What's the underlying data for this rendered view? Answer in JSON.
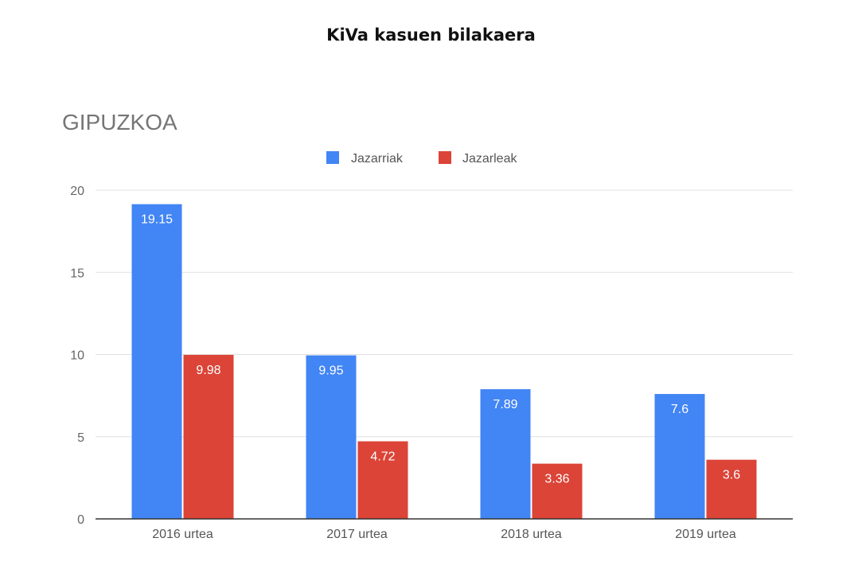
{
  "page": {
    "title": "KiVa kasuen bilakaera"
  },
  "chart_data": {
    "type": "bar",
    "title": "GIPUZKOA",
    "categories": [
      "2016 urtea",
      "2017 urtea",
      "2018 urtea",
      "2019 urtea"
    ],
    "series": [
      {
        "name": "Jazarriak",
        "color": "#4285F4",
        "values": [
          19.15,
          9.95,
          7.89,
          7.6
        ]
      },
      {
        "name": "Jazarleak",
        "color": "#DB4437",
        "values": [
          9.98,
          4.72,
          3.36,
          3.6
        ]
      }
    ],
    "data_labels": [
      [
        "19.15",
        "9.95",
        "7.89",
        "7.6"
      ],
      [
        "9.98",
        "4.72",
        "3.36",
        "3.6"
      ]
    ],
    "yticks": [
      "0",
      "5",
      "10",
      "15",
      "20"
    ],
    "ylim": [
      0,
      20
    ],
    "grid": true,
    "legend": "top-center"
  }
}
